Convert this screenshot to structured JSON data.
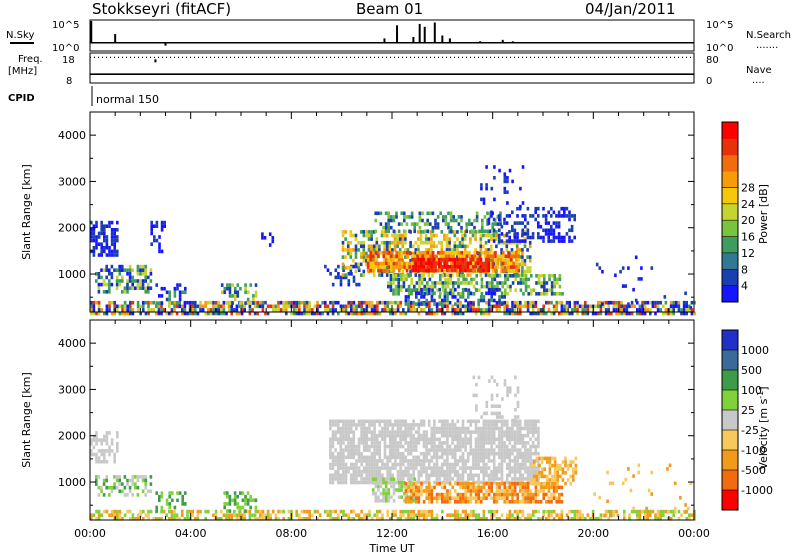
{
  "header": {
    "station": "Stokkseyri (fitACF)",
    "beam": "Beam 01",
    "date": "04/Jan/2011"
  },
  "panel_labels": {
    "nsky": "N.Sky",
    "nsearch": "N.Search",
    "nsearch_dots": ".......",
    "freq_line1": "Freq.",
    "freq_line2": "[MHz]",
    "nave": "Nave",
    "nave_dots": "....",
    "cpid": "CPID",
    "cpid_value": "normal 150"
  },
  "chart_data": [
    {
      "type": "line",
      "name": "noise-panel",
      "ylabel_left": "N.Sky",
      "ylabel_right": "N.Search",
      "left_ticks": [
        "10^5",
        "10^0"
      ],
      "right_ticks": [
        "10^5",
        "10^0"
      ],
      "x_range_hours": [
        0,
        24
      ],
      "baseline": 0.25,
      "spikes": [
        {
          "t": 0.05,
          "v": 1.0
        },
        {
          "t": 1.0,
          "v": 0.55
        },
        {
          "t": 3.0,
          "v": 0.15
        },
        {
          "t": 11.7,
          "v": 0.4
        },
        {
          "t": 12.2,
          "v": 0.85
        },
        {
          "t": 12.85,
          "v": 0.45
        },
        {
          "t": 13.1,
          "v": 0.9
        },
        {
          "t": 13.3,
          "v": 0.8
        },
        {
          "t": 13.7,
          "v": 0.95
        },
        {
          "t": 14.0,
          "v": 0.5
        },
        {
          "t": 14.3,
          "v": 0.4
        },
        {
          "t": 15.5,
          "v": 0.3
        },
        {
          "t": 16.4,
          "v": 0.35
        },
        {
          "t": 16.8,
          "v": 0.3
        },
        {
          "t": 17.6,
          "v": 0.25
        }
      ]
    },
    {
      "type": "line",
      "name": "frequency-panel",
      "ylabel_left": "Freq. [MHz]",
      "ylabel_right": "Nave",
      "left_ticks": [
        "18",
        "8"
      ],
      "right_ticks": [
        "80",
        "0"
      ],
      "x_range_hours": [
        0,
        24
      ],
      "freq_level": 0.28,
      "nave_level": 0.88,
      "nave_dot_at": 2.6
    },
    {
      "type": "heatmap",
      "name": "power",
      "ylabel": "Slant Range [km]",
      "y_ticks": [
        "1000",
        "2000",
        "3000",
        "4000"
      ],
      "y_range_km": [
        180,
        4500
      ],
      "x_range_hours": [
        0,
        24
      ],
      "colorbar_label": "Power [dB]",
      "colorbar_ticks": [
        "4",
        "8",
        "12",
        "16",
        "20",
        "24",
        "28"
      ],
      "colorbar_colors": [
        "#1515ff",
        "#1a3fb0",
        "#2f7a92",
        "#3e9c5f",
        "#78c43e",
        "#c4d52f",
        "#f5c80c",
        "#f79c08",
        "#f26b0e",
        "#e8300a",
        "#ff0000"
      ],
      "regions": [
        {
          "t": [
            0.0,
            24.0
          ],
          "r": [
            180,
            420
          ],
          "c": [
            0,
            1,
            3,
            5,
            7,
            9
          ],
          "d": 0.7
        },
        {
          "t": [
            0.0,
            1.1
          ],
          "r": [
            1400,
            2150
          ],
          "c": [
            0,
            1
          ],
          "d": 0.7
        },
        {
          "t": [
            2.4,
            3.0
          ],
          "r": [
            1500,
            2150
          ],
          "c": [
            0,
            1
          ],
          "d": 0.5
        },
        {
          "t": [
            0.2,
            2.4
          ],
          "r": [
            650,
            1200
          ],
          "c": [
            0,
            1,
            3,
            5
          ],
          "d": 0.55
        },
        {
          "t": [
            2.6,
            3.8
          ],
          "r": [
            350,
            800
          ],
          "c": [
            0,
            1,
            3
          ],
          "d": 0.4
        },
        {
          "t": [
            5.2,
            6.6
          ],
          "r": [
            350,
            800
          ],
          "c": [
            1,
            3,
            5
          ],
          "d": 0.45
        },
        {
          "t": [
            6.8,
            7.4
          ],
          "r": [
            1600,
            1900
          ],
          "c": [
            0
          ],
          "d": 0.3
        },
        {
          "t": [
            9.3,
            10.7
          ],
          "r": [
            800,
            1200
          ],
          "c": [
            0,
            1
          ],
          "d": 0.35
        },
        {
          "t": [
            10.0,
            17.5
          ],
          "r": [
            1000,
            1950
          ],
          "c": [
            1,
            3,
            5,
            6,
            7
          ],
          "d": 0.55
        },
        {
          "t": [
            11.0,
            17.0
          ],
          "r": [
            1050,
            1500
          ],
          "c": [
            6,
            7,
            8,
            9
          ],
          "d": 0.75
        },
        {
          "t": [
            12.8,
            15.8
          ],
          "r": [
            1100,
            1350
          ],
          "c": [
            9,
            10
          ],
          "d": 0.85
        },
        {
          "t": [
            11.3,
            16.3
          ],
          "r": [
            1900,
            2350
          ],
          "c": [
            1,
            3,
            4
          ],
          "d": 0.45
        },
        {
          "t": [
            11.8,
            18.8
          ],
          "r": [
            550,
            1000
          ],
          "c": [
            1,
            3,
            4,
            5
          ],
          "d": 0.55
        },
        {
          "t": [
            12.5,
            16.5
          ],
          "r": [
            350,
            700
          ],
          "c": [
            0,
            1,
            3
          ],
          "d": 0.35
        },
        {
          "t": [
            15.8,
            19.3
          ],
          "r": [
            1700,
            2450
          ],
          "c": [
            0,
            1
          ],
          "d": 0.35
        },
        {
          "t": [
            15.5,
            17.2
          ],
          "r": [
            2400,
            3350
          ],
          "c": [
            0,
            1
          ],
          "d": 0.12
        },
        {
          "t": [
            20.0,
            24.0
          ],
          "r": [
            300,
            1400
          ],
          "c": [
            0,
            1
          ],
          "d": 0.05
        }
      ]
    },
    {
      "type": "heatmap",
      "name": "velocity",
      "ylabel": "Slant Range [km]",
      "y_ticks": [
        "1000",
        "2000",
        "3000",
        "4000"
      ],
      "y_range_km": [
        180,
        4500
      ],
      "x_range_hours": [
        0,
        24
      ],
      "xlabel": "Time UT",
      "x_tick_labels": [
        "00:00",
        "04:00",
        "08:00",
        "12:00",
        "16:00",
        "20:00",
        "00:00"
      ],
      "colorbar_label": "Velocity [m s^-1]",
      "colorbar_ticks": [
        "1000",
        "500",
        "100",
        "25",
        "-25",
        "-100",
        "-500",
        "-1000"
      ],
      "colorbar_colors": [
        "#2030c8",
        "#3a6a9a",
        "#3e9b4a",
        "#7fd23a",
        "#c8c8c8",
        "#f7c85a",
        "#f29a1a",
        "#f26b0e",
        "#ff0000"
      ],
      "regions": [
        {
          "t": [
            0.0,
            24.0
          ],
          "r": [
            180,
            400
          ],
          "c": [
            3,
            5,
            6
          ],
          "d": 0.6
        },
        {
          "t": [
            0.0,
            1.1
          ],
          "r": [
            1450,
            2100
          ],
          "c": [
            4
          ],
          "d": 0.5
        },
        {
          "t": [
            0.2,
            2.4
          ],
          "r": [
            700,
            1150
          ],
          "c": [
            2,
            3,
            4
          ],
          "d": 0.5
        },
        {
          "t": [
            2.6,
            3.8
          ],
          "r": [
            350,
            800
          ],
          "c": [
            2,
            3
          ],
          "d": 0.4
        },
        {
          "t": [
            5.3,
            6.6
          ],
          "r": [
            350,
            800
          ],
          "c": [
            3,
            2
          ],
          "d": 0.5
        },
        {
          "t": [
            9.5,
            17.8
          ],
          "r": [
            1000,
            2350
          ],
          "c": [
            4
          ],
          "d": 0.8
        },
        {
          "t": [
            11.2,
            13.0
          ],
          "r": [
            600,
            1100
          ],
          "c": [
            3,
            4
          ],
          "d": 0.6
        },
        {
          "t": [
            12.5,
            18.8
          ],
          "r": [
            550,
            1000
          ],
          "c": [
            5,
            6,
            7
          ],
          "d": 0.75
        },
        {
          "t": [
            17.5,
            19.3
          ],
          "r": [
            1000,
            1550
          ],
          "c": [
            5,
            6
          ],
          "d": 0.6
        },
        {
          "t": [
            15.2,
            17.0
          ],
          "r": [
            2300,
            3300
          ],
          "c": [
            4
          ],
          "d": 0.2
        },
        {
          "t": [
            20.0,
            24.0
          ],
          "r": [
            300,
            1400
          ],
          "c": [
            5,
            6
          ],
          "d": 0.04
        }
      ]
    }
  ]
}
